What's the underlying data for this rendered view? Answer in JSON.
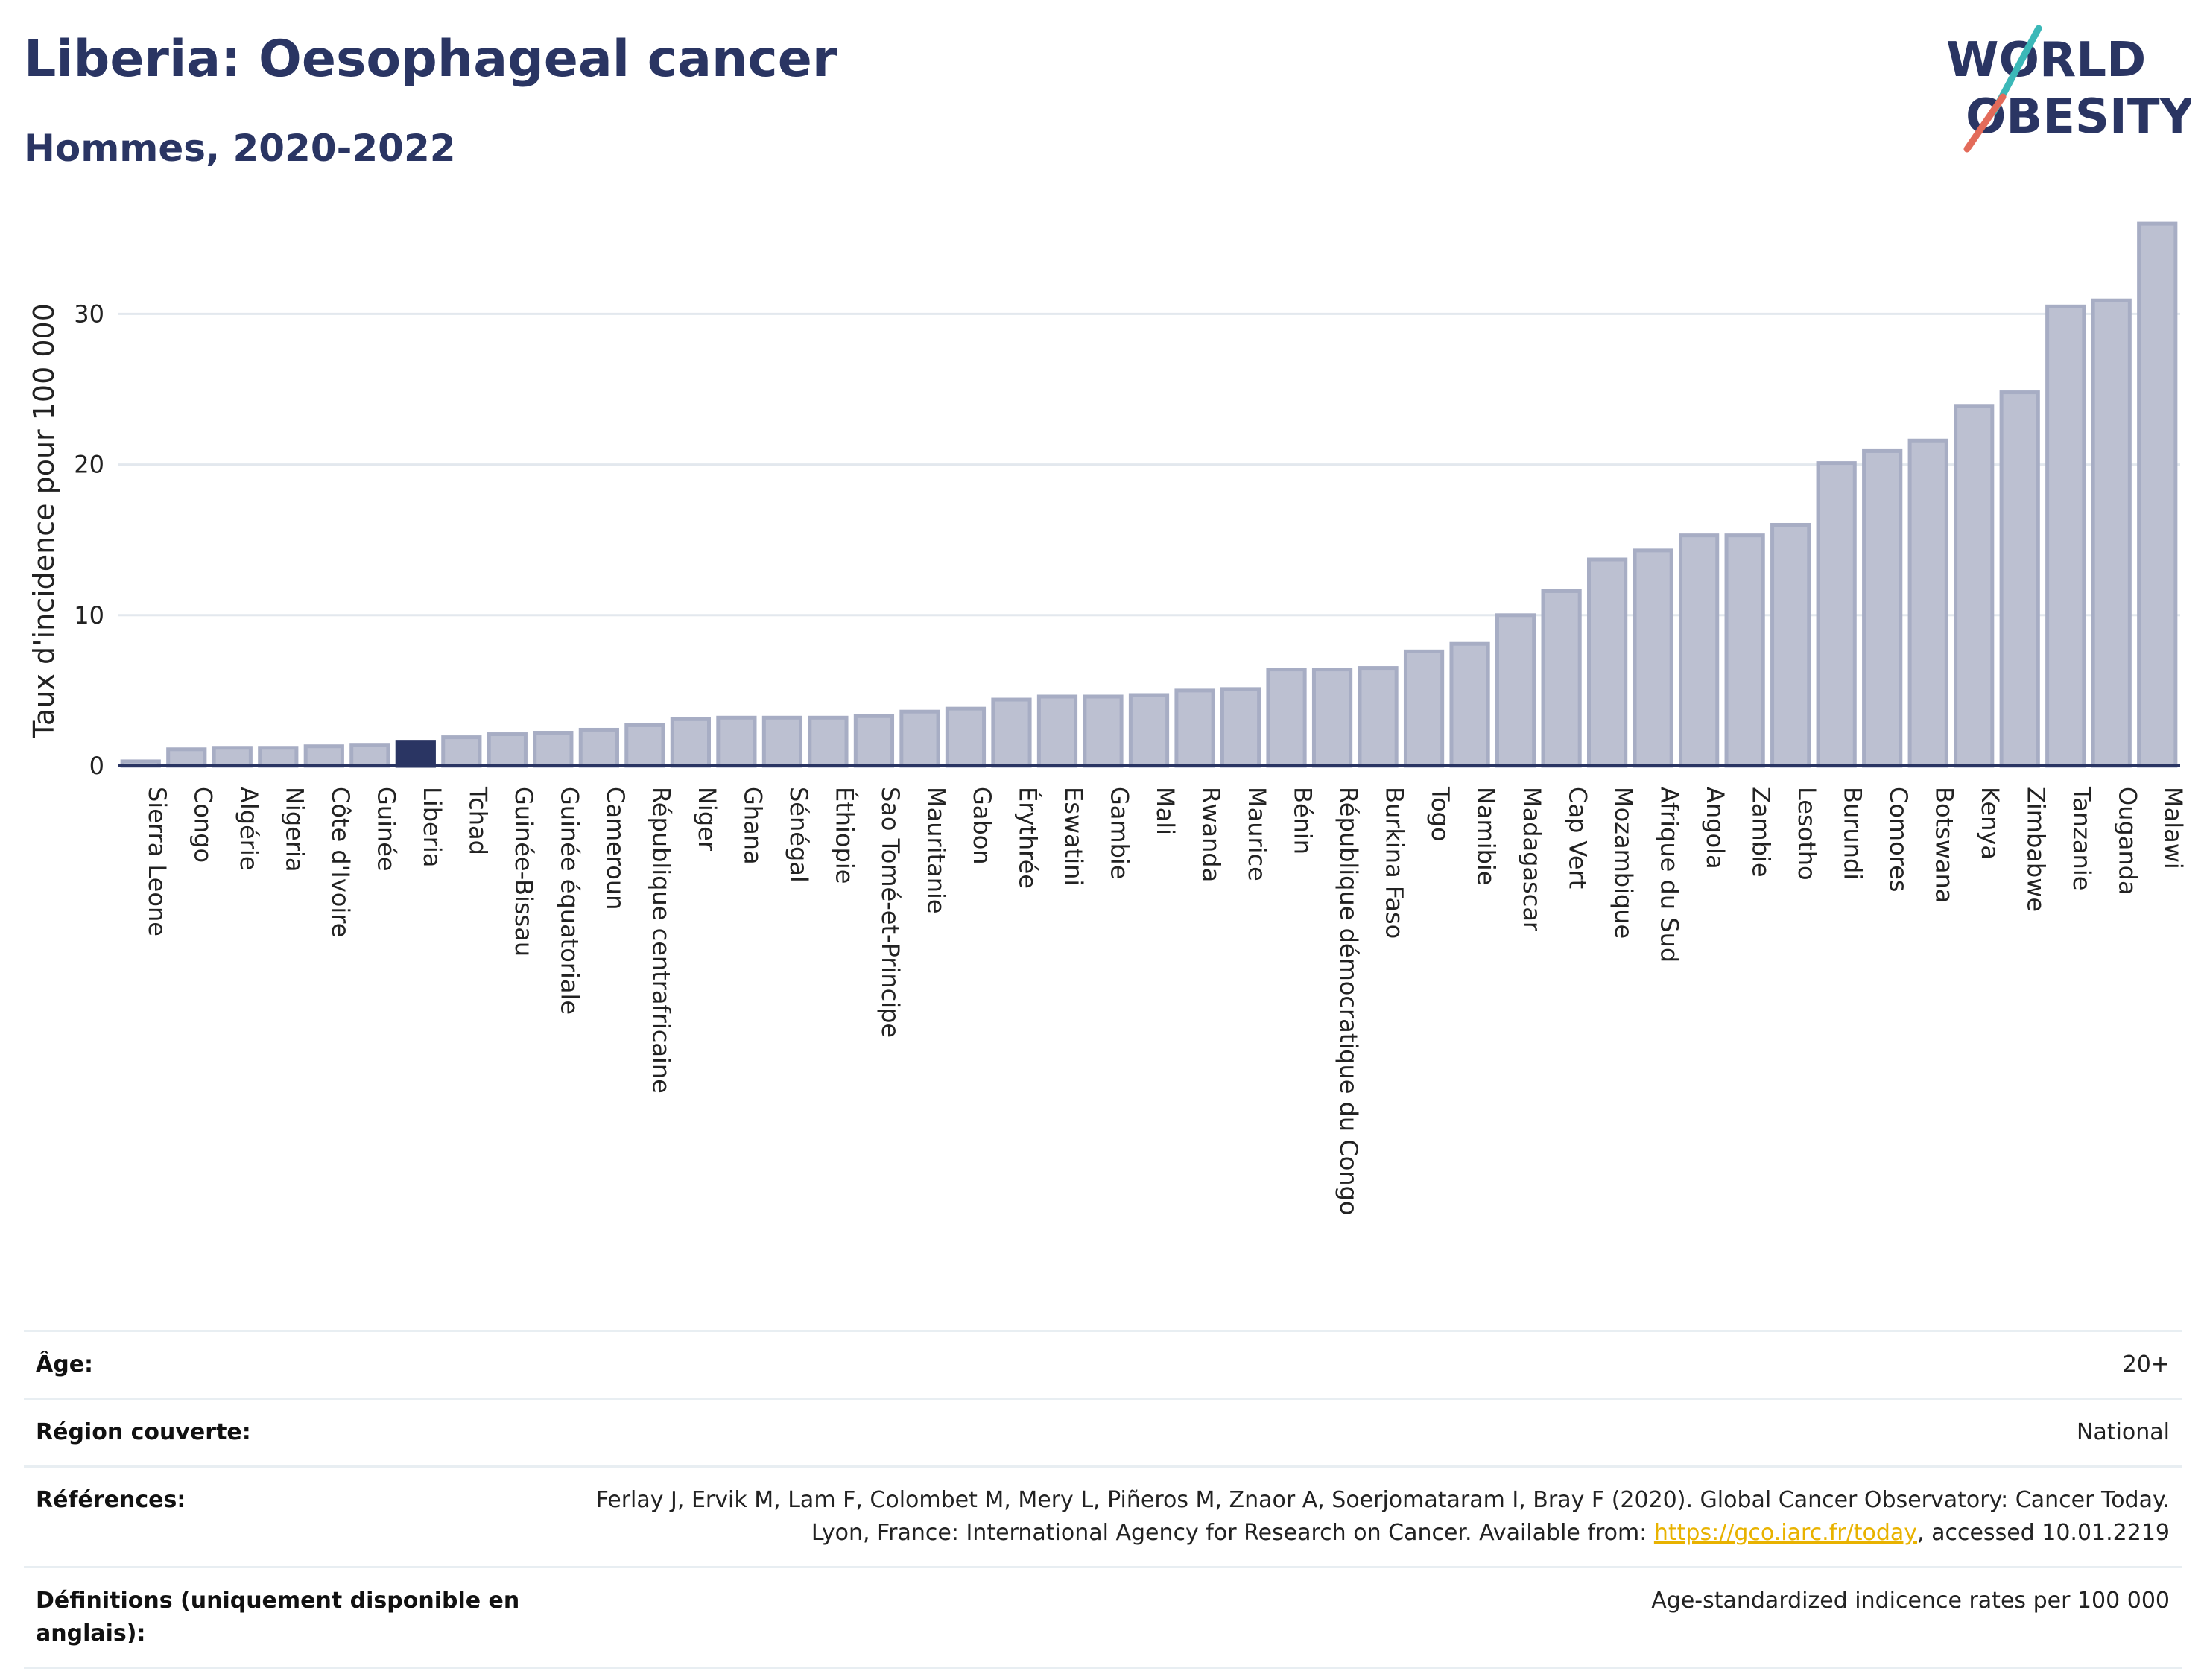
{
  "header": {
    "title": "Liberia: Oesophageal cancer",
    "subtitle": "Hommes, 2020-2022"
  },
  "logo": {
    "line1": "WORLD",
    "line2": "OBESITY",
    "text_color": "#2a3563",
    "stroke_colors": [
      "#3bb8b8",
      "#e36b5a"
    ]
  },
  "chart_data": {
    "type": "bar",
    "title": "",
    "xlabel": "",
    "ylabel": "Taux d'incidence pour 100 000",
    "ylim": [
      0,
      36.5
    ],
    "yticks": [
      0,
      10,
      20,
      30
    ],
    "grid": true,
    "highlight_category": "Liberia",
    "colors": {
      "bar": "#bcc0d1",
      "bar_edge": "#a7adc4",
      "highlight": "#2a3563",
      "axis": "#2a3563",
      "grid": "#e3e8ee"
    },
    "categories": [
      "Sierra Leone",
      "Congo",
      "Algérie",
      "Nigeria",
      "Côte d'Ivoire",
      "Guinée",
      "Liberia",
      "Tchad",
      "Guinée-Bissau",
      "Guinée équatoriale",
      "Cameroun",
      "République centrafricaine",
      "Niger",
      "Ghana",
      "Sénégal",
      "Éthiopie",
      "Sao Tomé-et-Principe",
      "Mauritanie",
      "Gabon",
      "Érythrée",
      "Eswatini",
      "Gambie",
      "Mali",
      "Rwanda",
      "Maurice",
      "Bénin",
      "République démocratique du Congo",
      "Burkina Faso",
      "Togo",
      "Namibie",
      "Madagascar",
      "Cap Vert",
      "Mozambique",
      "Afrique du Sud",
      "Angola",
      "Zambie",
      "Lesotho",
      "Burundi",
      "Comores",
      "Botswana",
      "Kenya",
      "Zimbabwe",
      "Tanzanie",
      "Ouganda",
      "Malawi"
    ],
    "values": [
      0.3,
      1.1,
      1.2,
      1.2,
      1.3,
      1.4,
      1.6,
      1.9,
      2.1,
      2.2,
      2.4,
      2.7,
      3.1,
      3.2,
      3.2,
      3.2,
      3.3,
      3.6,
      3.8,
      4.4,
      4.6,
      4.6,
      4.7,
      5.0,
      5.1,
      6.4,
      6.4,
      6.5,
      7.6,
      8.1,
      10.0,
      11.6,
      13.7,
      14.3,
      15.3,
      15.3,
      16.0,
      20.1,
      20.9,
      21.6,
      23.9,
      24.8,
      30.5,
      30.9,
      36.0
    ]
  },
  "info": {
    "rows": [
      {
        "label": "Âge:",
        "value": "20+"
      },
      {
        "label": "Région couverte:",
        "value": "National"
      },
      {
        "label": "Références:",
        "value_before": "Ferlay J, Ervik M, Lam F, Colombet M, Mery L, Piñeros M, Znaor A, Soerjomataram I, Bray F (2020). Global Cancer Observatory: Cancer Today. Lyon, France: International Agency for Research on Cancer. Available from: ",
        "link": "https://gco.iarc.fr/today",
        "value_after": ", accessed 10.01.2219"
      },
      {
        "label": "Définitions (uniquement disponible en anglais):",
        "value": "Age-standardized indicence rates per 100 000"
      }
    ]
  }
}
